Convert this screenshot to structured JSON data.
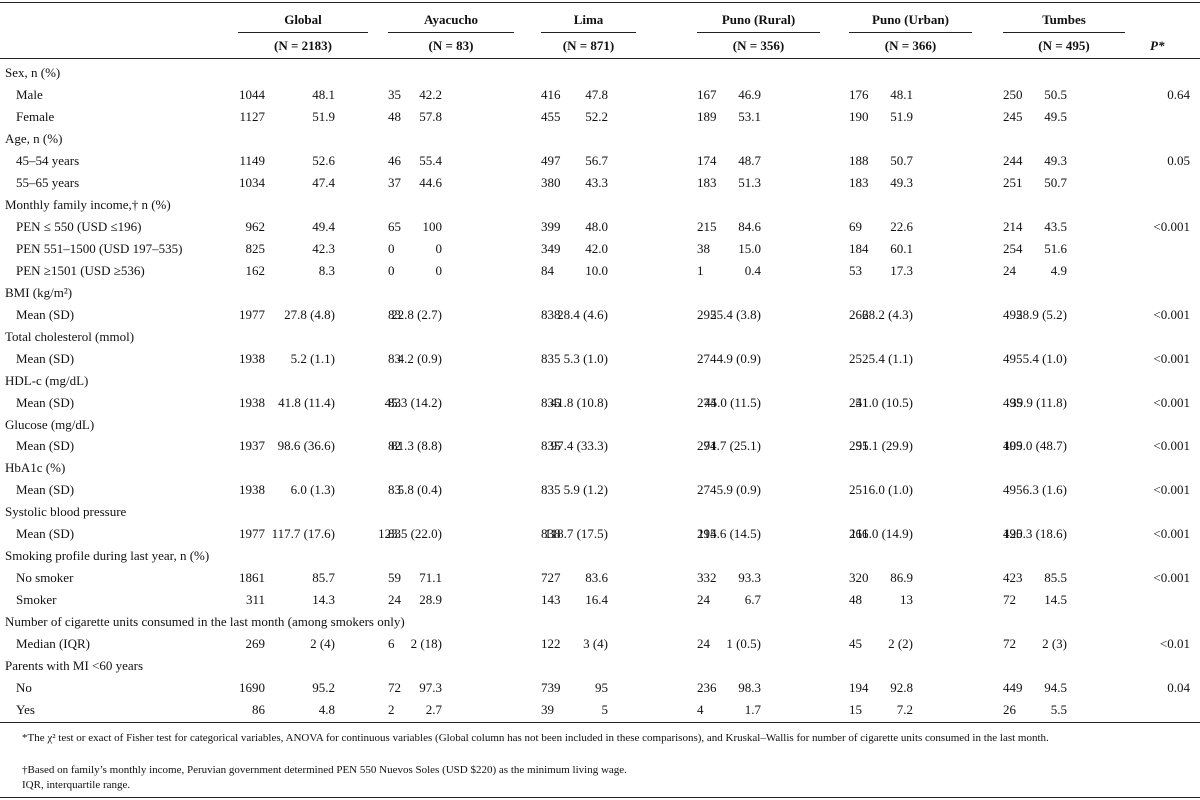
{
  "table": {
    "groups": [
      {
        "name": "Global",
        "n": "(N = 2183)"
      },
      {
        "name": "Ayacucho",
        "n": "(N = 83)"
      },
      {
        "name": "Lima",
        "n": "(N = 871)"
      },
      {
        "name": "Puno (Rural)",
        "n": "(N = 356)"
      },
      {
        "name": "Puno (Urban)",
        "n": "(N = 366)"
      },
      {
        "name": "Tumbes",
        "n": "(N = 495)"
      }
    ],
    "p_header": "P*",
    "rows": [
      {
        "label": "Sex, n (%)"
      },
      {
        "label": "Male",
        "cells": [
          "1044",
          "48.1",
          "35",
          "42.2",
          "416",
          "47.8",
          "167",
          "46.9",
          "176",
          "48.1",
          "250",
          "50.5"
        ],
        "p": "0.64"
      },
      {
        "label": "Female",
        "cells": [
          "1127",
          "51.9",
          "48",
          "57.8",
          "455",
          "52.2",
          "189",
          "53.1",
          "190",
          "51.9",
          "245",
          "49.5"
        ]
      },
      {
        "label": "Age, n (%)"
      },
      {
        "label": "45–54 years",
        "cells": [
          "1149",
          "52.6",
          "46",
          "55.4",
          "497",
          "56.7",
          "174",
          "48.7",
          "188",
          "50.7",
          "244",
          "49.3"
        ],
        "p": "0.05"
      },
      {
        "label": "55–65 years",
        "cells": [
          "1034",
          "47.4",
          "37",
          "44.6",
          "380",
          "43.3",
          "183",
          "51.3",
          "183",
          "49.3",
          "251",
          "50.7"
        ]
      },
      {
        "label": "Monthly family income,† n (%)"
      },
      {
        "label": "PEN ≤ 550 (USD ≤196)",
        "cells": [
          "962",
          "49.4",
          "65",
          "100",
          "399",
          "48.0",
          "215",
          "84.6",
          "69",
          "22.6",
          "214",
          "43.5"
        ],
        "p": "<0.001"
      },
      {
        "label": "PEN 551–1500 (USD 197–535)",
        "cells": [
          "825",
          "42.3",
          "0",
          "0",
          "349",
          "42.0",
          "38",
          "15.0",
          "184",
          "60.1",
          "254",
          "51.6"
        ]
      },
      {
        "label": "PEN ≥1501 (USD ≥536)",
        "cells": [
          "162",
          "8.3",
          "0",
          "0",
          "84",
          "10.0",
          "1",
          "0.4",
          "53",
          "17.3",
          "24",
          "4.9"
        ]
      },
      {
        "label": "BMI (kg/m²)"
      },
      {
        "label": "Mean (SD)",
        "cells": [
          "1977",
          "27.8 (4.8)",
          "83",
          "22.8 (2.7)",
          "838",
          "28.4 (4.6)",
          "295",
          "25.4 (3.8)",
          "266",
          "28.2 (4.3)",
          "495",
          "28.9 (5.2)"
        ],
        "p": "<0.001"
      },
      {
        "label": "Total cholesterol (mmol)"
      },
      {
        "label": "Mean (SD)",
        "cells": [
          "1938",
          "5.2 (1.1)",
          "83",
          "4.2 (0.9)",
          "835",
          "5.3 (1.0)",
          "274",
          "4.9 (0.9)",
          "252",
          "5.4 (1.1)",
          "495",
          "5.4 (1.0)"
        ],
        "p": "<0.001"
      },
      {
        "label": "HDL-c (mg/dL)"
      },
      {
        "label": "Mean (SD)",
        "cells": [
          "1938",
          "41.8 (11.4)",
          "83",
          "45.3 (14.2)",
          "835",
          "41.8 (10.8)",
          "274",
          "45.0 (11.5)",
          "251",
          "41.0 (10.5)",
          "495",
          "39.9 (11.8)"
        ],
        "p": "<0.001"
      },
      {
        "label": "Glucose (mg/dL)"
      },
      {
        "label": "Mean (SD)",
        "cells": [
          "1937",
          "98.6 (36.6)",
          "82",
          "81.3 (8.8)",
          "835",
          "97.4 (33.3)",
          "274",
          "91.7 (25.1)",
          "251",
          "95.1 (29.9)",
          "495",
          "109.0 (48.7)"
        ],
        "p": "<0.001"
      },
      {
        "label": "HbA1c (%)"
      },
      {
        "label": "Mean (SD)",
        "cells": [
          "1938",
          "6.0 (1.3)",
          "83",
          "5.8 (0.4)",
          "835",
          "5.9 (1.2)",
          "274",
          "5.9 (0.9)",
          "251",
          "6.0 (1.0)",
          "495",
          "6.3 (1.6)"
        ],
        "p": "<0.001"
      },
      {
        "label": "Systolic blood pressure"
      },
      {
        "label": "Mean (SD)",
        "cells": [
          "1977",
          "117.7 (17.6)",
          "83",
          "123.5 (22.0)",
          "838",
          "118.7 (17.5)",
          "295",
          "114.6 (14.5)",
          "266",
          "111.0 (14.9)",
          "495",
          "120.3 (18.6)"
        ],
        "p": "<0.001"
      },
      {
        "label": "Smoking profile during last year, n (%)"
      },
      {
        "label": "No smoker",
        "cells": [
          "1861",
          "85.7",
          "59",
          "71.1",
          "727",
          "83.6",
          "332",
          "93.3",
          "320",
          "86.9",
          "423",
          "85.5"
        ],
        "p": "<0.001"
      },
      {
        "label": "Smoker",
        "cells": [
          "311",
          "14.3",
          "24",
          "28.9",
          "143",
          "16.4",
          "24",
          "6.7",
          "48",
          "13",
          "72",
          "14.5"
        ]
      },
      {
        "label": "Number of cigarette units consumed in the last month (among smokers only)"
      },
      {
        "label": "Median (IQR)",
        "cells": [
          "269",
          "2 (4)",
          "6",
          "2 (18)",
          "122",
          "3 (4)",
          "24",
          "1 (0.5)",
          "45",
          "2 (2)",
          "72",
          "2 (3)"
        ],
        "p": "<0.01"
      },
      {
        "label": "Parents with MI <60 years"
      },
      {
        "label": "No",
        "cells": [
          "1690",
          "95.2",
          "72",
          "97.3",
          "739",
          "95",
          "236",
          "98.3",
          "194",
          "92.8",
          "449",
          "94.5"
        ],
        "p": "0.04"
      },
      {
        "label": "Yes",
        "cells": [
          "86",
          "4.8",
          "2",
          "2.7",
          "39",
          "5",
          "4",
          "1.7",
          "15",
          "7.2",
          "26",
          "5.5"
        ]
      }
    ]
  },
  "footnotes": [
    "*The χ² test or exact of Fisher test for categorical variables, ANOVA for continuous variables (Global column has not been included in these comparisons), and Kruskal–Wallis for number of cigarette units consumed in the last month.",
    "†Based on family’s monthly income, Peruvian government determined PEN 550 Nuevos Soles (USD $220) as the minimum living wage.",
    "IQR, interquartile range."
  ]
}
